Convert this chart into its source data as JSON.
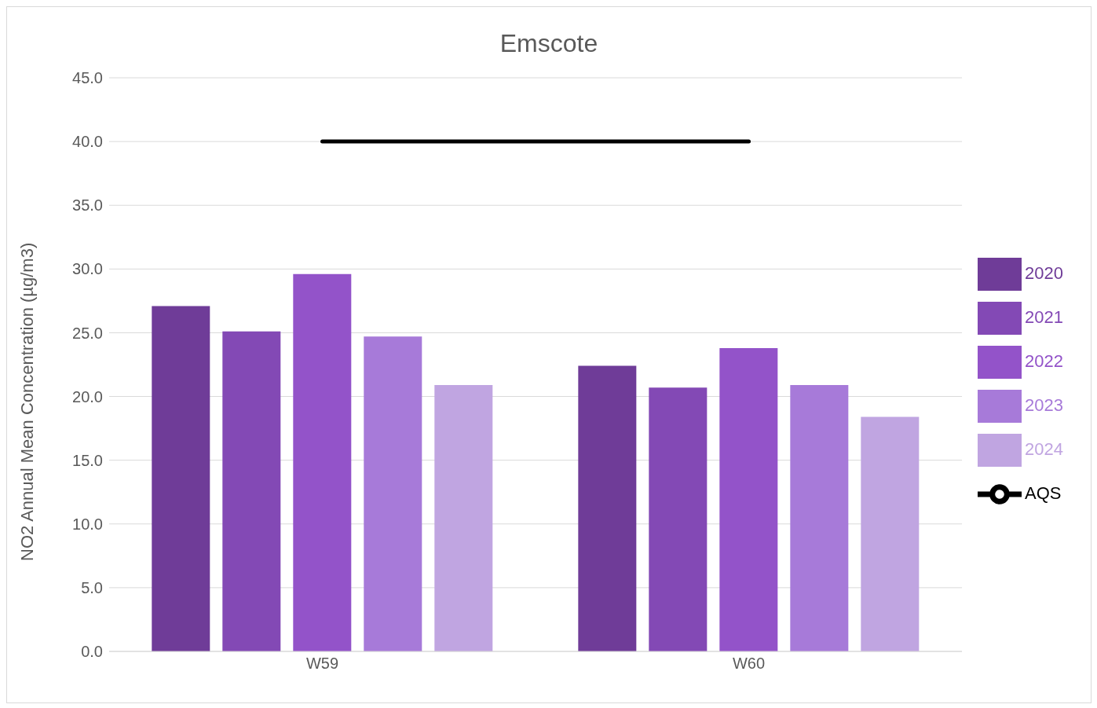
{
  "chart_data": {
    "type": "bar",
    "title": "Emscote",
    "ylabel": "NO2 Annual Mean Concentration (µg/m3)",
    "categories": [
      "W59",
      "W60"
    ],
    "series": [
      {
        "name": "2020",
        "color": "#6f3c98",
        "values": [
          27.1,
          22.4
        ]
      },
      {
        "name": "2021",
        "color": "#8349b5",
        "values": [
          25.1,
          20.7
        ]
      },
      {
        "name": "2022",
        "color": "#9353c9",
        "values": [
          29.6,
          23.8
        ]
      },
      {
        "name": "2023",
        "color": "#a77ad9",
        "values": [
          24.7,
          20.9
        ]
      },
      {
        "name": "2024",
        "color": "#c0a5e1",
        "values": [
          20.9,
          18.4
        ]
      },
      {
        "name": "AQS",
        "type": "line",
        "color": "#000000",
        "values": [
          40,
          40
        ]
      }
    ],
    "ylim": [
      0,
      45
    ],
    "yticks": [
      {
        "value": 0,
        "label": "0.0"
      },
      {
        "value": 5,
        "label": "5.0"
      },
      {
        "value": 10,
        "label": "10.0"
      },
      {
        "value": 15,
        "label": "15.0"
      },
      {
        "value": 20,
        "label": "20.0"
      },
      {
        "value": 25,
        "label": "25.0"
      },
      {
        "value": 30,
        "label": "30.0"
      },
      {
        "value": 35,
        "label": "35.0"
      },
      {
        "value": 40,
        "label": "40.0"
      },
      {
        "value": 45,
        "label": "45.0"
      }
    ],
    "grid": "y",
    "legend": "right"
  }
}
